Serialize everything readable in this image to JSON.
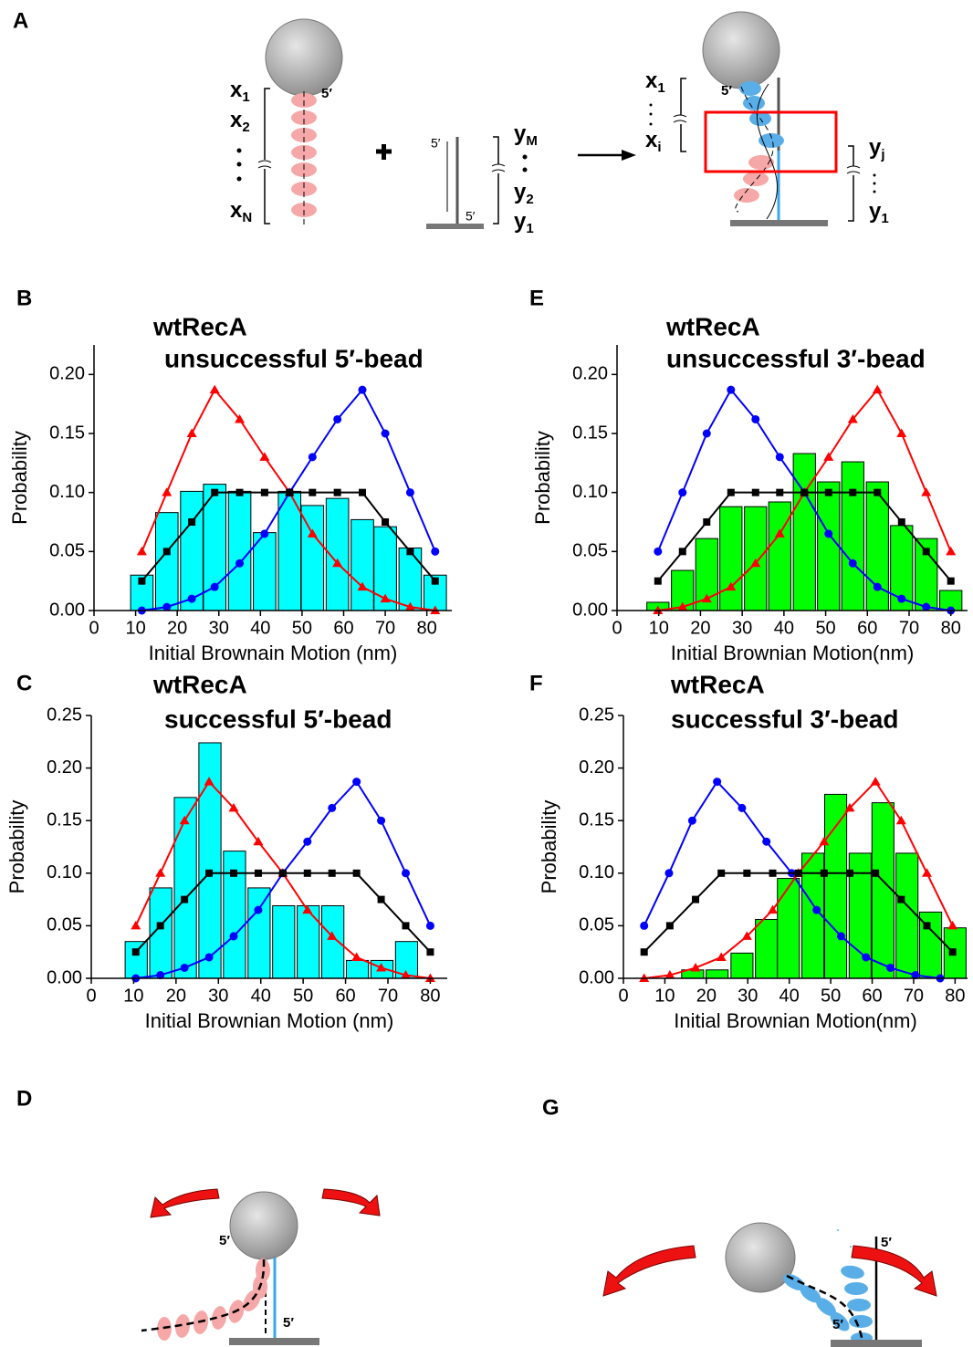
{
  "chart_data": [
    {
      "type": "bar",
      "panel": "B",
      "title": [
        "wtRecA",
        "unsuccessful 5′-bead"
      ],
      "xlabel": "Initial Brownain Motion (nm)",
      "ylabel": "Probability",
      "xlim": [
        0,
        86
      ],
      "ylim": [
        0,
        0.225
      ],
      "xticks": [
        0,
        10,
        20,
        30,
        40,
        50,
        60,
        70,
        80
      ],
      "yticks": [
        {
          "value": 0,
          "label": "0.00"
        },
        {
          "value": 0.05,
          "label": "0.05"
        },
        {
          "value": 0.1,
          "label": "0.10"
        },
        {
          "value": 0.15,
          "label": "0.15"
        },
        {
          "value": 0.2,
          "label": "0.20"
        }
      ],
      "series": [
        {
          "type": "bar",
          "color": "#00ffff",
          "x": [
            11.5,
            17.5,
            23.5,
            29,
            35,
            41,
            47,
            52.5,
            58.5,
            64.5,
            70,
            76,
            82
          ],
          "values": [
            0.03,
            0.083,
            0.101,
            0.107,
            0.101,
            0.066,
            0.101,
            0.089,
            0.095,
            0.077,
            0.071,
            0.053,
            0.03
          ]
        },
        {
          "type": "line",
          "marker": "triangle",
          "color": "#ff0000",
          "x": [
            11.5,
            17.5,
            23.5,
            29,
            35,
            41,
            47,
            52.5,
            58.5,
            64.5,
            70,
            76,
            82
          ],
          "values": [
            0.05,
            0.1,
            0.15,
            0.187,
            0.162,
            0.13,
            0.1,
            0.065,
            0.04,
            0.02,
            0.01,
            0.003,
            0
          ]
        },
        {
          "type": "line",
          "marker": "circle",
          "color": "#0000ff",
          "x": [
            11.5,
            17.5,
            23.5,
            29,
            35,
            41,
            47,
            52.5,
            58.5,
            64.5,
            70,
            76,
            82
          ],
          "values": [
            0,
            0.003,
            0.01,
            0.02,
            0.04,
            0.065,
            0.1,
            0.13,
            0.162,
            0.187,
            0.15,
            0.1,
            0.05
          ]
        },
        {
          "type": "line",
          "marker": "square",
          "color": "#000000",
          "x": [
            11.5,
            17.5,
            23.5,
            29,
            35,
            41,
            47,
            52.5,
            58.5,
            64.5,
            70,
            76,
            82
          ],
          "values": [
            0.025,
            0.05,
            0.075,
            0.1,
            0.1,
            0.1,
            0.1,
            0.1,
            0.1,
            0.1,
            0.075,
            0.05,
            0.025
          ]
        }
      ]
    },
    {
      "type": "bar",
      "panel": "C",
      "title": [
        "wtRecA",
        "successful 5′-bead"
      ],
      "xlabel": "Initial Brownian Motion (nm)",
      "ylabel": "Probability",
      "xlim": [
        0,
        84
      ],
      "ylim": [
        0,
        0.25
      ],
      "xticks": [
        0,
        10,
        20,
        30,
        40,
        50,
        60,
        70,
        80
      ],
      "yticks": [
        {
          "value": 0,
          "label": "0.00"
        },
        {
          "value": 0.05,
          "label": "0.05"
        },
        {
          "value": 0.1,
          "label": "0.10"
        },
        {
          "value": 0.15,
          "label": "0.15"
        },
        {
          "value": 0.2,
          "label": "0.20"
        },
        {
          "value": 0.25,
          "label": "0.25"
        }
      ],
      "series": [
        {
          "type": "bar",
          "color": "#00ffff",
          "x": [
            10.6,
            16.4,
            22.2,
            28,
            33.8,
            39.6,
            45.4,
            51.2,
            57,
            62.8,
            68.6,
            74.4
          ],
          "values": [
            0.035,
            0.086,
            0.172,
            0.224,
            0.121,
            0.086,
            0.069,
            0.069,
            0.069,
            0.017,
            0.017,
            0.035
          ]
        },
        {
          "type": "line",
          "marker": "triangle",
          "color": "#ff0000",
          "x": [
            10.5,
            16.3,
            22,
            27.8,
            33.6,
            39.4,
            45.2,
            51,
            56.8,
            62.6,
            68.4,
            74.2,
            80
          ],
          "values": [
            0.05,
            0.1,
            0.15,
            0.187,
            0.162,
            0.13,
            0.1,
            0.065,
            0.04,
            0.02,
            0.01,
            0.003,
            0
          ]
        },
        {
          "type": "line",
          "marker": "circle",
          "color": "#0000ff",
          "x": [
            10.5,
            16.3,
            22,
            27.8,
            33.6,
            39.4,
            45.2,
            51,
            56.8,
            62.6,
            68.4,
            74.2,
            80
          ],
          "values": [
            0,
            0.003,
            0.01,
            0.02,
            0.04,
            0.065,
            0.1,
            0.13,
            0.162,
            0.187,
            0.15,
            0.1,
            0.05
          ]
        },
        {
          "type": "line",
          "marker": "square",
          "color": "#000000",
          "x": [
            10.5,
            16.3,
            22,
            27.8,
            33.6,
            39.4,
            45.2,
            51,
            56.8,
            62.6,
            68.4,
            74.2,
            80
          ],
          "values": [
            0.025,
            0.05,
            0.075,
            0.1,
            0.1,
            0.1,
            0.1,
            0.1,
            0.1,
            0.1,
            0.075,
            0.05,
            0.025
          ]
        }
      ]
    },
    {
      "type": "bar",
      "panel": "E",
      "title": [
        "wtRecA",
        "unsuccessful 3′-bead"
      ],
      "xlabel": "Initial Brownian Motion(nm)",
      "ylabel": "Probability",
      "xlim": [
        0,
        84
      ],
      "ylim": [
        0,
        0.225
      ],
      "xticks": [
        0,
        10,
        20,
        30,
        40,
        50,
        60,
        70,
        80
      ],
      "yticks": [
        {
          "value": 0,
          "label": "0.00"
        },
        {
          "value": 0.05,
          "label": "0.05"
        },
        {
          "value": 0.1,
          "label": "0.10"
        },
        {
          "value": 0.15,
          "label": "0.15"
        },
        {
          "value": 0.2,
          "label": "0.20"
        }
      ],
      "series": [
        {
          "type": "bar",
          "color": "#00ff00",
          "x": [
            9.8,
            15.7,
            21.5,
            27.3,
            33.2,
            39,
            44.9,
            50.7,
            56.5,
            62.4,
            68.2,
            74.1,
            80
          ],
          "values": [
            0.007,
            0.034,
            0.061,
            0.088,
            0.088,
            0.092,
            0.133,
            0.109,
            0.126,
            0.109,
            0.072,
            0.061,
            0.017
          ]
        },
        {
          "type": "line",
          "marker": "circle",
          "color": "#0000ff",
          "x": [
            9.8,
            15.7,
            21.5,
            27.3,
            33.2,
            39,
            44.9,
            50.7,
            56.5,
            62.4,
            68.2,
            74.1,
            80
          ],
          "values": [
            0.05,
            0.1,
            0.15,
            0.187,
            0.162,
            0.13,
            0.1,
            0.065,
            0.04,
            0.02,
            0.01,
            0.003,
            0
          ]
        },
        {
          "type": "line",
          "marker": "triangle",
          "color": "#ff0000",
          "x": [
            9.8,
            15.7,
            21.5,
            27.3,
            33.2,
            39,
            44.9,
            50.7,
            56.5,
            62.4,
            68.2,
            74.1,
            80
          ],
          "values": [
            0,
            0.003,
            0.01,
            0.02,
            0.04,
            0.065,
            0.1,
            0.13,
            0.162,
            0.187,
            0.15,
            0.1,
            0.05
          ]
        },
        {
          "type": "line",
          "marker": "square",
          "color": "#000000",
          "x": [
            9.8,
            15.7,
            21.5,
            27.3,
            33.2,
            39,
            44.9,
            50.7,
            56.5,
            62.4,
            68.2,
            74.1,
            80
          ],
          "values": [
            0.025,
            0.05,
            0.075,
            0.1,
            0.1,
            0.1,
            0.1,
            0.1,
            0.1,
            0.1,
            0.075,
            0.05,
            0.025
          ]
        }
      ]
    },
    {
      "type": "bar",
      "panel": "F",
      "title": [
        "wtRecA",
        "successful 3′-bead"
      ],
      "xlabel": "Initial Brownian Motion(nm)",
      "ylabel": "Probability",
      "xlim": [
        0,
        83
      ],
      "ylim": [
        0,
        0.25
      ],
      "xticks": [
        0,
        10,
        20,
        30,
        40,
        50,
        60,
        70,
        80
      ],
      "yticks": [
        {
          "value": 0,
          "label": "0.00"
        },
        {
          "value": 0.05,
          "label": "0.05"
        },
        {
          "value": 0.1,
          "label": "0.10"
        },
        {
          "value": 0.15,
          "label": "0.15"
        },
        {
          "value": 0.2,
          "label": "0.20"
        },
        {
          "value": 0.25,
          "label": "0.25"
        }
      ],
      "series": [
        {
          "type": "bar",
          "color": "#00ff00",
          "x": [
            16.7,
            22.6,
            28.6,
            34.5,
            39.8,
            45.7,
            51.2,
            57.1,
            62.6,
            68.4,
            74.1,
            80
          ],
          "values": [
            0.008,
            0.008,
            0.024,
            0.056,
            0.095,
            0.119,
            0.175,
            0.119,
            0.167,
            0.119,
            0.063,
            0.048
          ]
        },
        {
          "type": "line",
          "marker": "circle",
          "color": "#0000ff",
          "x": [
            5,
            11,
            16.6,
            22.6,
            28.6,
            34.5,
            40.6,
            46.6,
            52.5,
            58.5,
            64.4,
            70.4,
            76.4
          ],
          "values": [
            0.05,
            0.1,
            0.15,
            0.187,
            0.162,
            0.13,
            0.1,
            0.065,
            0.04,
            0.02,
            0.01,
            0.003,
            0
          ]
        },
        {
          "type": "line",
          "marker": "triangle",
          "color": "#ff0000",
          "x": [
            5,
            11.2,
            17.4,
            23.6,
            29.8,
            36,
            42.2,
            48.4,
            54.6,
            60.8,
            67,
            73.2,
            79.4
          ],
          "values": [
            0,
            0.003,
            0.01,
            0.02,
            0.04,
            0.065,
            0.1,
            0.13,
            0.162,
            0.187,
            0.15,
            0.1,
            0.05
          ]
        },
        {
          "type": "line",
          "marker": "square",
          "color": "#000000",
          "x": [
            5,
            11.2,
            17.4,
            23.6,
            29.8,
            36,
            42.2,
            48.4,
            54.6,
            60.8,
            67,
            73.2,
            79.4
          ],
          "values": [
            0.025,
            0.05,
            0.075,
            0.1,
            0.1,
            0.1,
            0.1,
            0.1,
            0.1,
            0.1,
            0.075,
            0.05,
            0.025
          ]
        }
      ]
    }
  ],
  "diagrams": {
    "a": {
      "panel": "A",
      "left": {
        "labels": [
          {
            "base": "x",
            "sub": "1"
          },
          {
            "base": "x",
            "sub": "2"
          },
          {
            "base": "x",
            "sub": "N"
          }
        ],
        "end": "5′"
      },
      "middle": {
        "labels": [
          {
            "base": "y",
            "sub": "M"
          },
          {
            "base": "y",
            "sub": "2"
          },
          {
            "base": "y",
            "sub": "1"
          }
        ],
        "end_top": "5′",
        "end_bottom": "5′"
      },
      "right": {
        "labels": [
          {
            "base": "x",
            "sub": "1"
          },
          {
            "base": "x",
            "sub": "i"
          }
        ],
        "labels_y": [
          {
            "base": "y",
            "sub": "j"
          },
          {
            "base": "y",
            "sub": "1"
          }
        ],
        "end": "5′"
      }
    },
    "d": {
      "panel": "D",
      "end_top": "5′",
      "end_bottom": "5′"
    },
    "g": {
      "panel": "G",
      "end_top": "5′",
      "end_bottom": "5′"
    }
  }
}
